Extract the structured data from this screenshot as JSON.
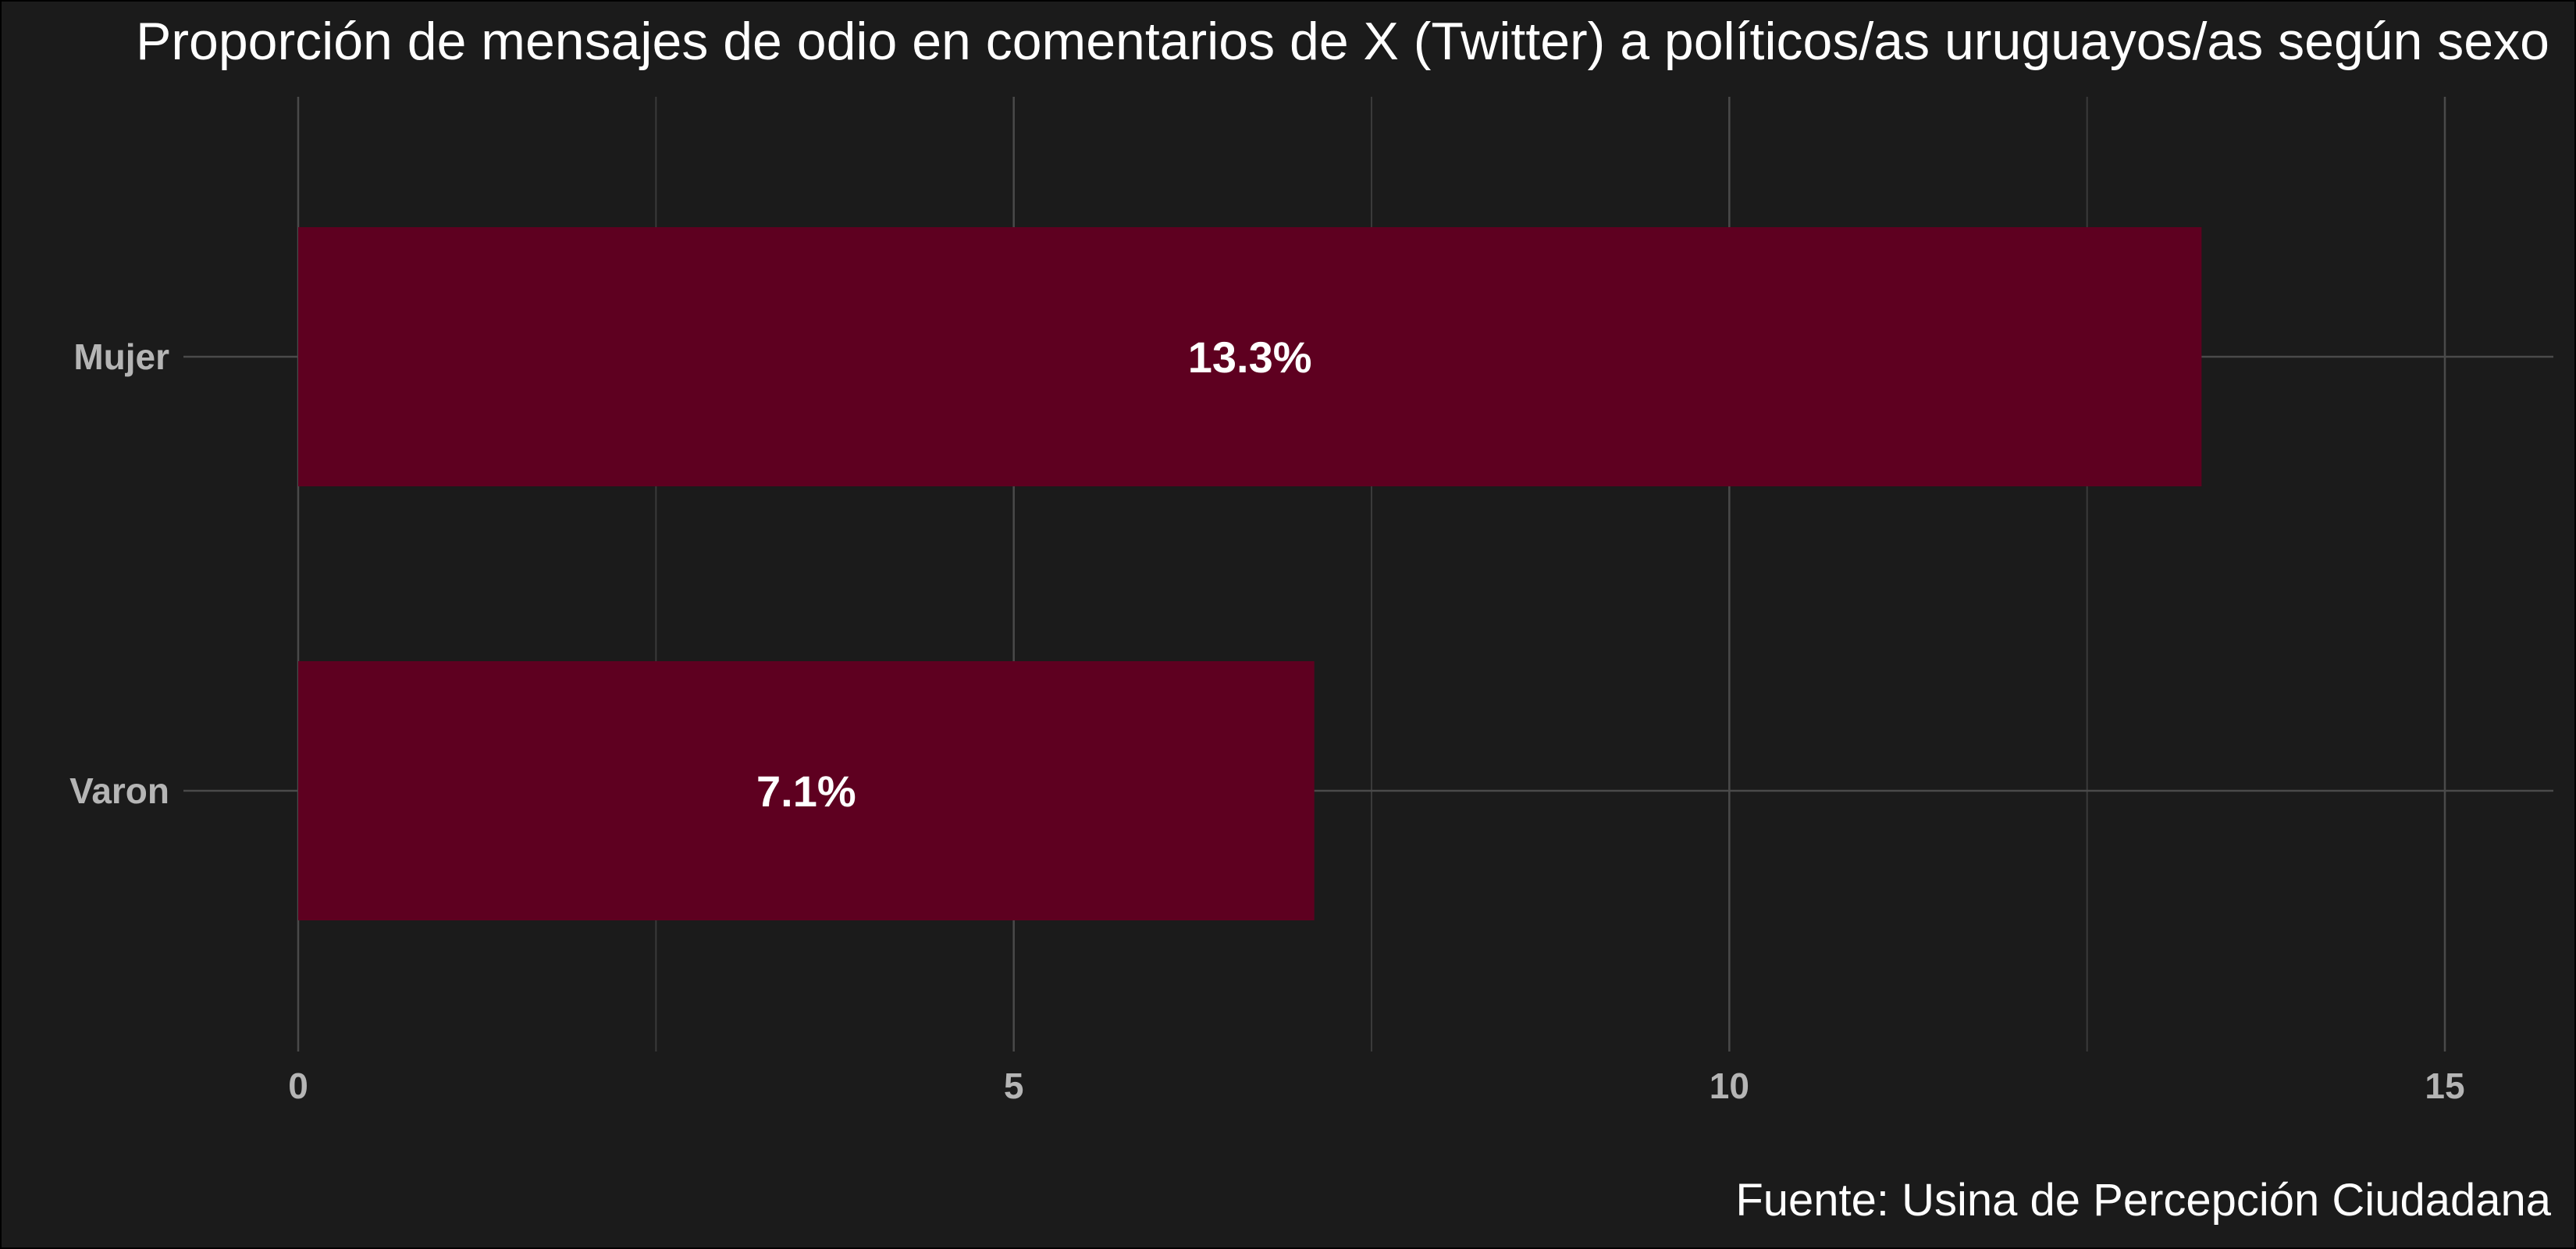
{
  "chart_data": {
    "type": "bar",
    "orientation": "horizontal",
    "title": "Proporción de mensajes de odio en comentarios de X (Twitter) a políticos/as uruguayos/as según sexo",
    "caption": "Fuente: Usina de Percepción Ciudadana",
    "categories": [
      "Mujer",
      "Varon"
    ],
    "values": [
      13.3,
      7.1
    ],
    "value_labels": [
      "13.3%",
      "7.1%"
    ],
    "x_ticks": [
      0,
      5,
      10,
      15
    ],
    "xlim": [
      0,
      15
    ],
    "grid": true,
    "bar_color": "#5e0020",
    "background_color": "#1b1b1b"
  }
}
